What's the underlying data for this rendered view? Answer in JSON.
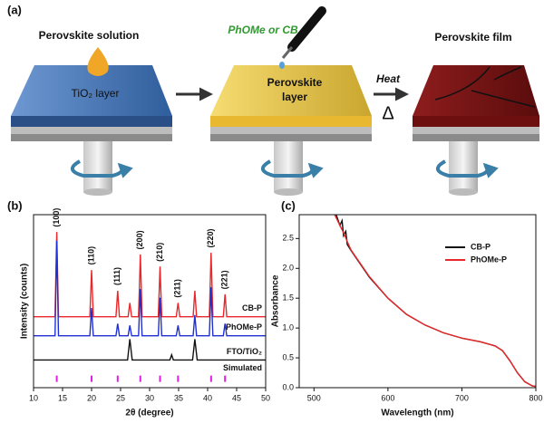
{
  "diagram": {
    "label": "(a)",
    "step1_title": "Perovskite solution",
    "step1_layer": "TiO₂ layer",
    "solvent": "PhOMe or CB",
    "step2_layer": [
      "Perovskite",
      "layer"
    ],
    "heat": "Heat",
    "delta": "Δ",
    "step3_title": "Perovskite film"
  },
  "chart_data": [
    {
      "type": "line",
      "label": "(b)",
      "xlabel": "2θ (degree)",
      "ylabel": "Intensity (counts)",
      "xlim": [
        10,
        50
      ],
      "xticks": [
        10,
        15,
        20,
        25,
        30,
        35,
        40,
        45,
        50
      ],
      "ylim": [
        0,
        100
      ],
      "series_labels": "right",
      "annotations": [
        {
          "text": "(100)",
          "x": 14
        },
        {
          "text": "(110)",
          "x": 20
        },
        {
          "text": "(111)",
          "x": 24.5
        },
        {
          "text": "(200)",
          "x": 28.4
        },
        {
          "text": "(210)",
          "x": 31.8
        },
        {
          "text": "(211)",
          "x": 34.9
        },
        {
          "text": "(220)",
          "x": 40.6
        },
        {
          "text": "(221)",
          "x": 43
        }
      ],
      "series": [
        {
          "name": "CB-P",
          "color": "#e8282b",
          "x": [
            10,
            13.7,
            14,
            14.3,
            19.7,
            20,
            20.3,
            24.2,
            24.5,
            24.8,
            26.3,
            26.6,
            26.9,
            28.1,
            28.4,
            28.7,
            31.5,
            31.8,
            32.1,
            34.6,
            34.9,
            35.2,
            37.5,
            37.8,
            38.1,
            40.3,
            40.6,
            40.9,
            42.7,
            43,
            43.3,
            50
          ],
          "values": [
            41,
            41,
            90,
            41,
            41,
            68,
            41,
            41,
            56,
            41,
            41,
            49,
            41,
            41,
            77,
            41,
            41,
            70,
            41,
            41,
            49,
            41,
            41,
            56,
            41,
            41,
            78,
            41,
            41,
            54,
            41,
            41
          ]
        },
        {
          "name": "PhOMe-P",
          "color": "#1f2fd0",
          "x": [
            10,
            13.7,
            14,
            14.3,
            19.7,
            20,
            20.3,
            24.2,
            24.5,
            24.8,
            26.3,
            26.6,
            26.9,
            28.1,
            28.4,
            28.7,
            31.5,
            31.8,
            32.1,
            34.6,
            34.9,
            35.2,
            37.5,
            37.8,
            38.1,
            40.3,
            40.6,
            40.9,
            42.7,
            43,
            43.3,
            50
          ],
          "values": [
            30,
            30,
            85,
            30,
            30,
            46,
            30,
            30,
            37,
            30,
            30,
            36,
            30,
            30,
            57,
            30,
            30,
            52,
            30,
            30,
            36,
            30,
            30,
            42,
            30,
            30,
            58,
            30,
            30,
            37,
            30,
            30
          ]
        },
        {
          "name": "FTO/TiO₂",
          "color": "#111111",
          "x": [
            10,
            26.2,
            26.6,
            27,
            33.5,
            33.8,
            34.1,
            37.4,
            37.8,
            38.2,
            50
          ],
          "values": [
            16,
            16,
            28,
            16,
            16,
            19,
            16,
            16,
            28,
            16,
            16
          ]
        },
        {
          "name": "Simulated",
          "color": "#e020e0",
          "marker": "stick",
          "x": [
            14,
            20,
            24.5,
            28.4,
            31.8,
            34.9,
            40.6,
            43
          ],
          "values": [
            7,
            7,
            7,
            7,
            7,
            7,
            7,
            7
          ]
        }
      ]
    },
    {
      "type": "line",
      "label": "(c)",
      "xlabel": "Wavelength (nm)",
      "ylabel": "Absorbance",
      "xlim": [
        480,
        800
      ],
      "xticks": [
        500,
        600,
        700,
        800
      ],
      "ylim": [
        0,
        2.9
      ],
      "yticks": [
        {
          "value": 0,
          "label": "0.0"
        },
        0.5,
        {
          "value": 1,
          "label": "1.0"
        },
        1.5,
        {
          "value": 2,
          "label": "2.0"
        },
        2.5
      ],
      "legend": "upper right",
      "series": [
        {
          "name": "CB-P",
          "color": "#111111",
          "x": [
            530,
            535,
            538,
            540,
            543,
            545,
            550,
            575,
            600,
            625,
            650,
            675,
            700,
            725,
            745,
            755,
            765,
            775,
            785,
            795,
            800
          ],
          "values": [
            2.9,
            2.72,
            2.8,
            2.55,
            2.62,
            2.4,
            2.3,
            1.85,
            1.5,
            1.23,
            1.05,
            0.92,
            0.83,
            0.77,
            0.7,
            0.62,
            0.45,
            0.25,
            0.1,
            0.03,
            0.02
          ]
        },
        {
          "name": "PhOMe-P",
          "color": "#e8282b",
          "x": [
            528,
            535,
            540,
            545,
            550,
            575,
            600,
            625,
            650,
            675,
            700,
            725,
            745,
            755,
            765,
            775,
            785,
            795,
            800
          ],
          "values": [
            2.9,
            2.72,
            2.6,
            2.45,
            2.31,
            1.86,
            1.5,
            1.23,
            1.05,
            0.92,
            0.83,
            0.77,
            0.7,
            0.62,
            0.45,
            0.25,
            0.1,
            0.03,
            0.02
          ]
        }
      ]
    }
  ]
}
